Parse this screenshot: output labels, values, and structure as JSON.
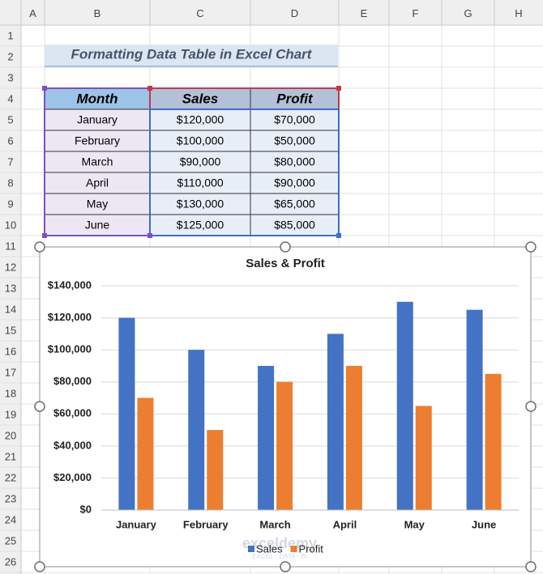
{
  "sheet": {
    "columns": [
      "A",
      "B",
      "C",
      "D",
      "E",
      "F",
      "G",
      "H"
    ],
    "rows": [
      1,
      2,
      3,
      4,
      5,
      6,
      7,
      8,
      9,
      10,
      11,
      12,
      13,
      14,
      15,
      16,
      17,
      18,
      19,
      20,
      21,
      22,
      23,
      24,
      25,
      26
    ],
    "title": "Formatting Data Table in Excel Chart",
    "table": {
      "header": [
        "Month",
        "Sales",
        "Profit"
      ],
      "rows": [
        [
          "January",
          "$120,000",
          "$70,000"
        ],
        [
          "February",
          "$100,000",
          "$50,000"
        ],
        [
          "March",
          "$90,000",
          "$80,000"
        ],
        [
          "April",
          "$110,000",
          "$90,000"
        ],
        [
          "May",
          "$130,000",
          "$65,000"
        ],
        [
          "June",
          "$125,000",
          "$85,000"
        ]
      ]
    }
  },
  "chart_data": {
    "type": "bar",
    "title": "Sales & Profit",
    "categories": [
      "January",
      "February",
      "March",
      "April",
      "May",
      "June"
    ],
    "series": [
      {
        "name": "Sales",
        "color": "#4472c4",
        "values": [
          120000,
          100000,
          90000,
          110000,
          130000,
          125000
        ]
      },
      {
        "name": "Profit",
        "color": "#ed7d31",
        "values": [
          70000,
          50000,
          80000,
          90000,
          65000,
          85000
        ]
      }
    ],
    "ylim": [
      0,
      140000
    ],
    "yticks": [
      {
        "value": 0,
        "label": "$0"
      },
      {
        "value": 20000,
        "label": "$20,000"
      },
      {
        "value": 40000,
        "label": "$40,000"
      },
      {
        "value": 60000,
        "label": "$60,000"
      },
      {
        "value": 80000,
        "label": "$80,000"
      },
      {
        "value": 100000,
        "label": "$100,000"
      },
      {
        "value": 120000,
        "label": "$120,000"
      },
      {
        "value": 140000,
        "label": "$140,000"
      }
    ],
    "grid": true,
    "legend": "bottom"
  },
  "watermark": {
    "brand": "exceldemy",
    "tagline": "EXCEL · DATA · BI"
  }
}
